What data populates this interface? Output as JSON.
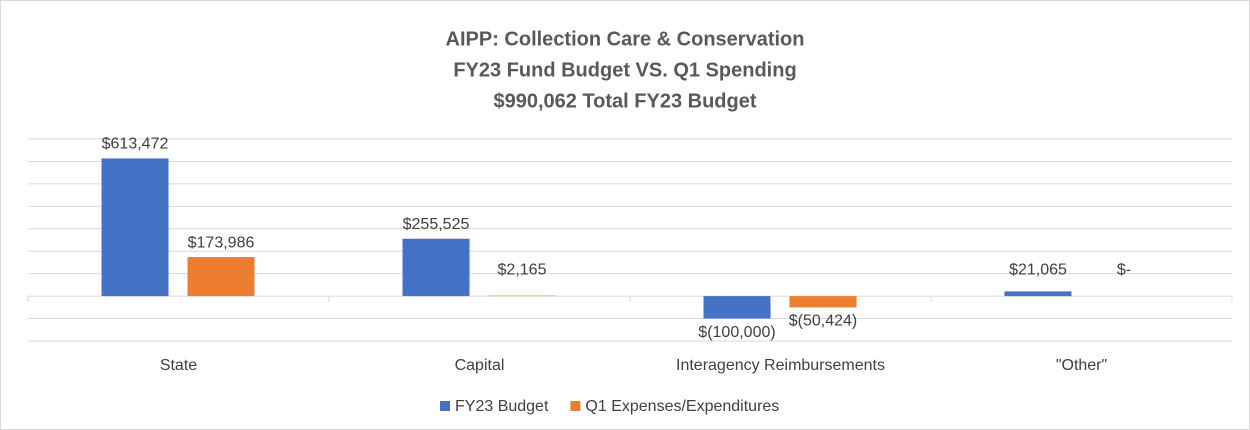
{
  "chart_data": {
    "type": "bar",
    "title": [
      "AIPP: Collection Care & Conservation",
      "FY23 Fund Budget VS. Q1 Spending",
      "$990,062 Total FY23 Budget"
    ],
    "categories": [
      "State",
      "Capital",
      "Interagency Reimbursements",
      "\"Other\""
    ],
    "series": [
      {
        "name": "FY23 Budget",
        "color": "#4472c4",
        "values": [
          613472,
          255525,
          -100000,
          21065
        ],
        "value_labels": [
          "$613,472",
          "$255,525",
          "$(100,000)",
          "$21,065"
        ]
      },
      {
        "name": "Q1 Expenses/Expenditures",
        "color": "#ed7d31",
        "values": [
          173986,
          2165,
          -50424,
          0
        ],
        "value_labels": [
          "$173,986",
          "$2,165",
          "$(50,424)",
          "$-"
        ]
      }
    ],
    "ylim": [
      -200000,
      700000
    ],
    "yticks": [
      -200000,
      -100000,
      0,
      100000,
      200000,
      300000,
      400000,
      500000,
      600000,
      700000
    ],
    "grid": true,
    "legend": "bottom"
  }
}
